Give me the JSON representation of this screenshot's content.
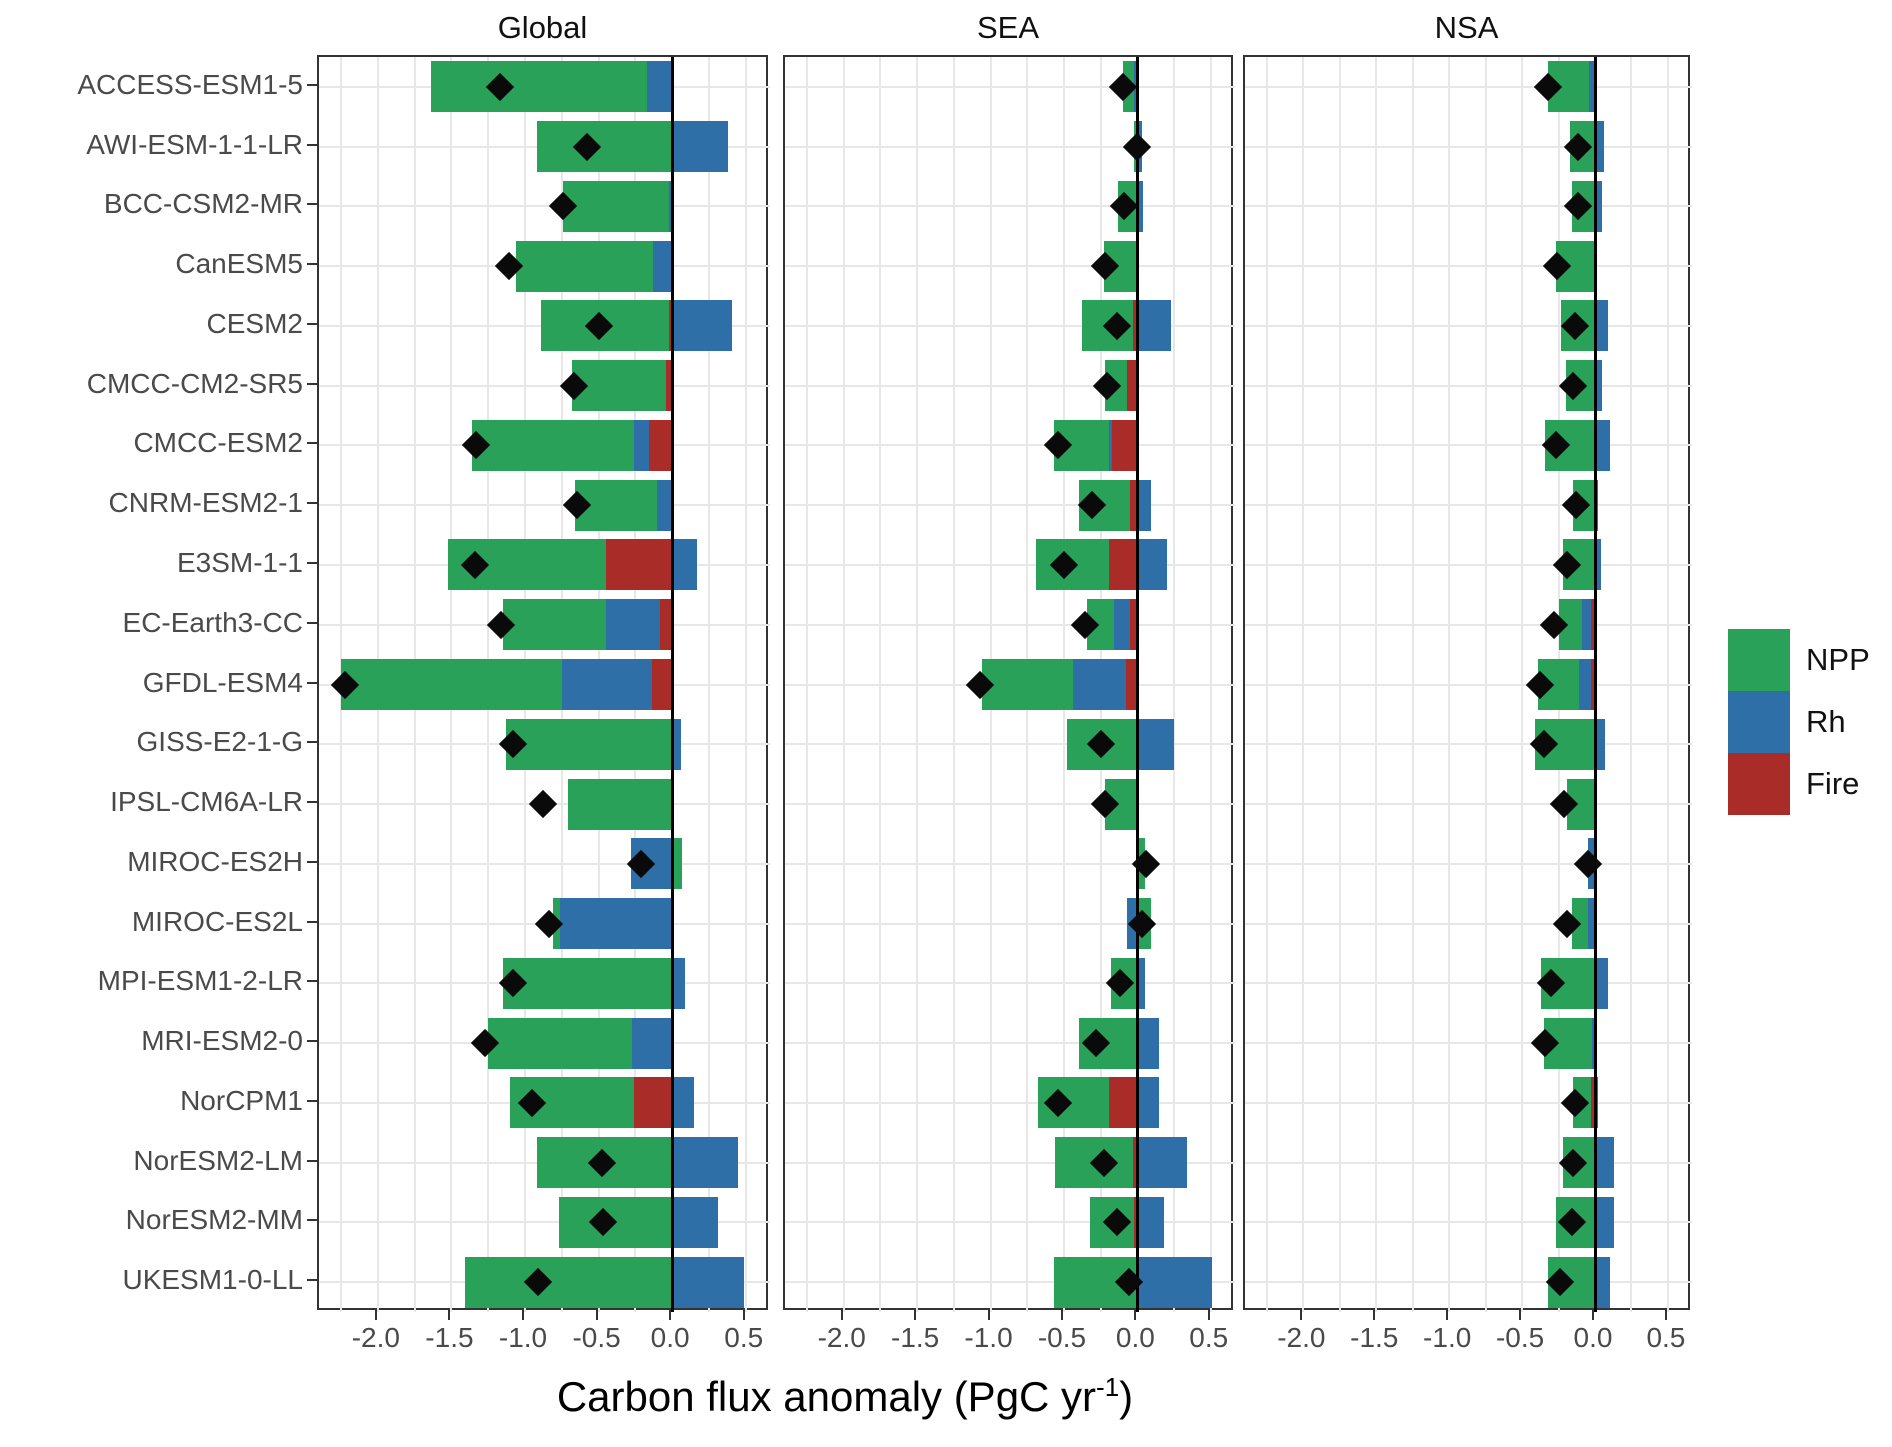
{
  "figure": {
    "panel_titles": [
      "Global",
      "SEA",
      "NSA"
    ],
    "x_axis": {
      "title_prefix": "Carbon flux anomaly (PgC yr",
      "title_sup": "-1",
      "title_suffix": ")",
      "ticks": [
        -2.0,
        -1.5,
        -1.0,
        -0.5,
        0.0,
        0.5
      ],
      "tick_labels": [
        "-2.0",
        "-1.5",
        "-1.0",
        "-0.5",
        "0.0",
        "0.5"
      ]
    },
    "legend": {
      "items": [
        {
          "key": "npp",
          "label": "NPP",
          "color": "#2aa158"
        },
        {
          "key": "rh",
          "label": "Rh",
          "color": "#2f6fa7"
        },
        {
          "key": "fire",
          "label": "Fire",
          "color": "#a92c28"
        }
      ]
    },
    "style_colors": {
      "gridline": "#e7e7e7",
      "panel_border": "#333333",
      "zero_line": "#000000",
      "diamond": "#0a0a0a",
      "tick_text": "#4a4a4a"
    }
  },
  "chart_data": {
    "type": "bar",
    "variant": "horizontal-stacked-faceted",
    "xlabel": "Carbon flux anomaly (PgC yr-1)",
    "xlim": [
      -2.4,
      0.665
    ],
    "grid_step": 0.25,
    "legend_position": "right",
    "marker_meaning": "net carbon flux anomaly (black diamond)",
    "categories": [
      "ACCESS-ESM1-5",
      "AWI-ESM-1-1-LR",
      "BCC-CSM2-MR",
      "CanESM5",
      "CESM2",
      "CMCC-CM2-SR5",
      "CMCC-ESM2",
      "CNRM-ESM2-1",
      "E3SM-1-1",
      "EC-Earth3-CC",
      "GFDL-ESM4",
      "GISS-E2-1-G",
      "IPSL-CM6A-LR",
      "MIROC-ES2H",
      "MIROC-ES2L",
      "MPI-ESM1-2-LR",
      "MRI-ESM2-0",
      "NorCPM1",
      "NorESM2-LM",
      "NorESM2-MM",
      "UKESM1-0-LL"
    ],
    "facets": [
      {
        "title": "Global",
        "models": [
          {
            "npp": -1.47,
            "rh": -0.17,
            "fire": 0.0,
            "net": -1.17
          },
          {
            "npp": -0.92,
            "rh": 0.38,
            "fire": 0.0,
            "net": -0.58
          },
          {
            "npp": -0.72,
            "rh": -0.02,
            "fire": 0.0,
            "net": -0.74
          },
          {
            "npp": -0.93,
            "rh": -0.13,
            "fire": 0.0,
            "net": -1.11
          },
          {
            "npp": -0.87,
            "rh": 0.41,
            "fire": -0.02,
            "net": -0.5
          },
          {
            "npp": -0.64,
            "rh": 0.0,
            "fire": -0.04,
            "net": -0.67
          },
          {
            "npp": -1.1,
            "rh": -0.1,
            "fire": -0.16,
            "net": -1.33
          },
          {
            "npp": -0.56,
            "rh": -0.1,
            "fire": 0.0,
            "net": -0.65
          },
          {
            "npp": -1.07,
            "rh": 0.17,
            "fire": -0.45,
            "net": -1.34
          },
          {
            "npp": -0.7,
            "rh": -0.37,
            "fire": -0.08,
            "net": -1.16
          },
          {
            "npp": -1.5,
            "rh": -0.61,
            "fire": -0.14,
            "net": -2.22
          },
          {
            "npp": -1.13,
            "rh": 0.06,
            "fire": 0.0,
            "net": -1.08
          },
          {
            "npp": -0.71,
            "rh": 0.0,
            "fire": 0.0,
            "net": -0.88
          },
          {
            "npp": 0.07,
            "rh": -0.28,
            "fire": 0.0,
            "net": -0.21
          },
          {
            "npp": -0.05,
            "rh": -0.76,
            "fire": 0.0,
            "net": -0.84
          },
          {
            "npp": -1.15,
            "rh": 0.09,
            "fire": 0.0,
            "net": -1.08
          },
          {
            "npp": -0.98,
            "rh": -0.27,
            "fire": 0.0,
            "net": -1.27
          },
          {
            "npp": -0.84,
            "rh": 0.15,
            "fire": -0.26,
            "net": -0.95
          },
          {
            "npp": -0.92,
            "rh": 0.45,
            "fire": 0.0,
            "net": -0.48
          },
          {
            "npp": -0.77,
            "rh": 0.31,
            "fire": 0.0,
            "net": -0.47
          },
          {
            "npp": -1.41,
            "rh": 0.49,
            "fire": 0.0,
            "net": -0.91
          }
        ]
      },
      {
        "title": "SEA",
        "models": [
          {
            "npp": -0.08,
            "rh": -0.02,
            "fire": 0.0,
            "net": -0.1
          },
          {
            "npp": -0.02,
            "rh": 0.03,
            "fire": 0.0,
            "net": 0.0
          },
          {
            "npp": -0.13,
            "rh": 0.04,
            "fire": 0.0,
            "net": -0.09
          },
          {
            "npp": -0.23,
            "rh": 0.0,
            "fire": 0.0,
            "net": -0.22
          },
          {
            "npp": -0.35,
            "rh": 0.23,
            "fire": -0.03,
            "net": -0.14
          },
          {
            "npp": -0.15,
            "rh": 0.0,
            "fire": -0.07,
            "net": -0.21
          },
          {
            "npp": -0.38,
            "rh": -0.02,
            "fire": -0.17,
            "net": -0.54
          },
          {
            "npp": -0.35,
            "rh": 0.09,
            "fire": -0.05,
            "net": -0.31
          },
          {
            "npp": -0.5,
            "rh": 0.2,
            "fire": -0.19,
            "net": -0.5
          },
          {
            "npp": -0.18,
            "rh": -0.11,
            "fire": -0.05,
            "net": -0.36
          },
          {
            "npp": -0.62,
            "rh": -0.36,
            "fire": -0.08,
            "net": -1.07
          },
          {
            "npp": -0.48,
            "rh": 0.25,
            "fire": 0.0,
            "net": -0.25
          },
          {
            "npp": -0.22,
            "rh": 0.0,
            "fire": 0.0,
            "net": -0.22
          },
          {
            "npp": 0.05,
            "rh": 0.0,
            "fire": 0.0,
            "net": 0.06
          },
          {
            "npp": 0.09,
            "rh": -0.07,
            "fire": 0.0,
            "net": 0.03
          },
          {
            "npp": -0.18,
            "rh": 0.05,
            "fire": 0.0,
            "net": -0.12
          },
          {
            "npp": -0.4,
            "rh": 0.15,
            "fire": 0.0,
            "net": -0.28
          },
          {
            "npp": -0.49,
            "rh": 0.15,
            "fire": -0.19,
            "net": -0.54
          },
          {
            "npp": -0.53,
            "rh": 0.34,
            "fire": -0.03,
            "net": -0.23
          },
          {
            "npp": -0.3,
            "rh": 0.18,
            "fire": -0.02,
            "net": -0.14
          },
          {
            "npp": -0.57,
            "rh": 0.51,
            "fire": 0.0,
            "net": -0.06
          }
        ]
      },
      {
        "title": "NSA",
        "models": [
          {
            "npp": -0.28,
            "rh": -0.04,
            "fire": 0.0,
            "net": -0.32
          },
          {
            "npp": -0.17,
            "rh": 0.06,
            "fire": 0.0,
            "net": -0.12
          },
          {
            "npp": -0.16,
            "rh": 0.05,
            "fire": 0.0,
            "net": -0.12
          },
          {
            "npp": -0.26,
            "rh": -0.01,
            "fire": 0.0,
            "net": -0.26
          },
          {
            "npp": -0.23,
            "rh": 0.09,
            "fire": 0.0,
            "net": -0.14
          },
          {
            "npp": -0.2,
            "rh": 0.05,
            "fire": 0.0,
            "net": -0.15
          },
          {
            "npp": -0.34,
            "rh": 0.1,
            "fire": 0.0,
            "net": -0.27
          },
          {
            "npp": -0.15,
            "rh": 0.02,
            "fire": 0.0,
            "net": -0.13
          },
          {
            "npp": -0.22,
            "rh": 0.04,
            "fire": 0.0,
            "net": -0.19
          },
          {
            "npp": -0.16,
            "rh": -0.06,
            "fire": -0.03,
            "net": -0.28
          },
          {
            "npp": -0.28,
            "rh": -0.08,
            "fire": -0.03,
            "net": -0.38
          },
          {
            "npp": -0.41,
            "rh": 0.07,
            "fire": 0.0,
            "net": -0.35
          },
          {
            "npp": -0.19,
            "rh": 0.0,
            "fire": 0.0,
            "net": -0.21
          },
          {
            "npp": 0.0,
            "rh": -0.05,
            "fire": 0.0,
            "net": -0.05
          },
          {
            "npp": -0.11,
            "rh": -0.05,
            "fire": 0.0,
            "net": -0.19
          },
          {
            "npp": -0.37,
            "rh": 0.09,
            "fire": 0.0,
            "net": -0.3
          },
          {
            "npp": -0.33,
            "rh": -0.02,
            "fire": 0.0,
            "net": -0.34
          },
          {
            "npp": -0.12,
            "rh": 0.02,
            "fire": -0.03,
            "net": -0.14
          },
          {
            "npp": -0.22,
            "rh": 0.13,
            "fire": 0.0,
            "net": -0.15
          },
          {
            "npp": -0.27,
            "rh": 0.13,
            "fire": 0.0,
            "net": -0.16
          },
          {
            "npp": -0.32,
            "rh": 0.1,
            "fire": 0.0,
            "net": -0.24
          }
        ]
      }
    ]
  }
}
